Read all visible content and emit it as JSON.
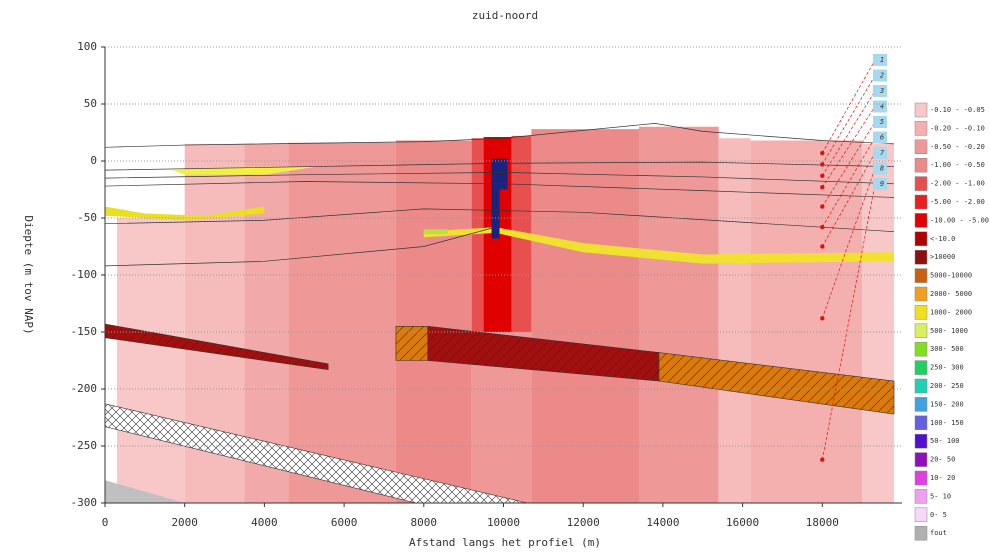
{
  "chart_data": {
    "type": "section",
    "title": "zuid-noord",
    "x_label": "Afstand langs het profiel (m)",
    "y_label": "Diepte (m tov NAP)",
    "xlim": [
      0,
      20000
    ],
    "ylim": [
      -300,
      100
    ],
    "xticks": [
      0,
      2000,
      4000,
      6000,
      8000,
      10000,
      12000,
      14000,
      16000,
      18000
    ],
    "yticks": [
      100,
      50,
      0,
      -50,
      -100,
      -150,
      -200,
      -250,
      -300
    ],
    "grid": true,
    "areas": [
      {
        "x": [
          300,
          2000,
          2000,
          300
        ],
        "y": [
          -50,
          -50,
          -300,
          -300
        ],
        "color": "#f8c8c8"
      },
      {
        "x": [
          2000,
          3500,
          3500,
          2000
        ],
        "y": [
          15,
          15,
          -300,
          -300
        ],
        "color": "#f6bcbc"
      },
      {
        "x": [
          3500,
          4600,
          4600,
          3500
        ],
        "y": [
          15,
          15,
          -300,
          -300
        ],
        "color": "#f2a9a9"
      },
      {
        "x": [
          4600,
          7300,
          7300,
          4600
        ],
        "y": [
          16,
          16,
          -300,
          -300
        ],
        "color": "#ef9898"
      },
      {
        "x": [
          7300,
          9200,
          9200,
          7300
        ],
        "y": [
          18,
          18,
          -300,
          -300
        ],
        "color": "#ec8a8a"
      },
      {
        "x": [
          9200,
          9500,
          9500,
          9200
        ],
        "y": [
          20,
          20,
          -150,
          -150
        ],
        "color": "#e85050"
      },
      {
        "x": [
          9500,
          10200,
          10200,
          9500
        ],
        "y": [
          21,
          21,
          -150,
          -150
        ],
        "color": "#e00000"
      },
      {
        "x": [
          10200,
          10700,
          10700,
          10200
        ],
        "y": [
          22,
          22,
          -150,
          -150
        ],
        "color": "#e85050"
      },
      {
        "x": [
          9200,
          10700,
          10700,
          9200
        ],
        "y": [
          -150,
          -150,
          -300,
          -300
        ],
        "color": "#ef9898"
      },
      {
        "x": [
          10700,
          13400,
          13400,
          10700
        ],
        "y": [
          28,
          28,
          -300,
          -300
        ],
        "color": "#ec8a8a"
      },
      {
        "x": [
          13400,
          15400,
          15400,
          13400
        ],
        "y": [
          30,
          30,
          -300,
          -300
        ],
        "color": "#ef9898"
      },
      {
        "x": [
          15400,
          16200,
          16200,
          15400
        ],
        "y": [
          20,
          20,
          -300,
          -300
        ],
        "color": "#f6bcbc"
      },
      {
        "x": [
          16200,
          19000,
          19000,
          16200
        ],
        "y": [
          18,
          18,
          -300,
          -300
        ],
        "color": "#f4afaf"
      },
      {
        "x": [
          19000,
          19800,
          19800,
          19000
        ],
        "y": [
          15,
          15,
          -300,
          -300
        ],
        "color": "#f8c8c8"
      },
      {
        "x": [
          0,
          5600,
          5600,
          0
        ],
        "y": [
          -143,
          -178,
          -183,
          -155
        ],
        "color": "#a01010",
        "hatch": "diag"
      },
      {
        "x": [
          7300,
          8100,
          8100,
          7300
        ],
        "y": [
          -145,
          -145,
          -175,
          -175
        ],
        "color": "#d97a10",
        "hatch": "diag"
      },
      {
        "x": [
          8100,
          13900,
          13900,
          8100
        ],
        "y": [
          -145,
          -168,
          -193,
          -175
        ],
        "color": "#a01010",
        "hatch": "diag"
      },
      {
        "x": [
          13900,
          19800,
          19800,
          13900
        ],
        "y": [
          -168,
          -193,
          -222,
          -193
        ],
        "color": "#d97a10",
        "hatch": "diag"
      },
      {
        "x": [
          0,
          10600,
          7800,
          0
        ],
        "y": [
          -213,
          -300,
          -300,
          -233
        ],
        "color": "#ffffff",
        "hatch": "cross"
      },
      {
        "x": [
          0,
          2000,
          0
        ],
        "y": [
          -280,
          -300,
          -300
        ],
        "color": "#c0c0c0"
      },
      {
        "x": [
          8000,
          9800,
          12000,
          15000,
          19800,
          19800,
          15000,
          12000,
          9800,
          8000
        ],
        "y": [
          -62,
          -58,
          -72,
          -82,
          -80,
          -88,
          -90,
          -80,
          -63,
          -67
        ],
        "color": "#f0e030"
      },
      {
        "x": [
          8000,
          8600,
          8600,
          8000
        ],
        "y": [
          -60,
          -60,
          -64,
          -64
        ],
        "color": "#b8e040"
      },
      {
        "x": [
          0,
          1000,
          2500,
          4000,
          4000,
          2000,
          0
        ],
        "y": [
          -40,
          -46,
          -48,
          -40,
          -46,
          -52,
          -48
        ],
        "color": "#e8e020"
      },
      {
        "x": [
          1700,
          3500,
          5300,
          4000,
          2000
        ],
        "y": [
          -8,
          -5,
          -5,
          -12,
          -12
        ],
        "color": "#f0f040"
      },
      {
        "x": [
          9700,
          10100,
          10100,
          9900,
          9900,
          9700
        ],
        "y": [
          2,
          2,
          -25,
          -25,
          -68,
          -68
        ],
        "color": "#1a237e"
      }
    ],
    "lines": [
      {
        "x": [
          0,
          2000,
          4000,
          8000,
          10000,
          13800,
          15000,
          18000,
          19800
        ],
        "y": [
          12,
          14,
          15,
          17,
          20,
          33,
          26,
          18,
          15
        ]
      },
      {
        "x": [
          0,
          5000,
          10000,
          15000,
          19800
        ],
        "y": [
          -8,
          -5,
          -2,
          -1,
          -5
        ]
      },
      {
        "x": [
          0,
          5000,
          10000,
          15000,
          19800
        ],
        "y": [
          -15,
          -12,
          -10,
          -14,
          -20
        ]
      },
      {
        "x": [
          0,
          5000,
          10000,
          15000,
          19800
        ],
        "y": [
          -22,
          -18,
          -20,
          -26,
          -32
        ]
      },
      {
        "x": [
          0,
          4000,
          8000,
          12000,
          19800
        ],
        "y": [
          -55,
          -52,
          -42,
          -45,
          -62
        ]
      },
      {
        "x": [
          0,
          4000,
          8000,
          9800
        ],
        "y": [
          -92,
          -88,
          -75,
          -58
        ]
      }
    ],
    "marker_x": 18000,
    "markers": [
      {
        "label": "1",
        "y": 7
      },
      {
        "label": "2",
        "y": -3
      },
      {
        "label": "3",
        "y": -13
      },
      {
        "label": "4",
        "y": -23
      },
      {
        "label": "5",
        "y": -40
      },
      {
        "label": "6",
        "y": -58
      },
      {
        "label": "7",
        "y": -75
      },
      {
        "label": "8",
        "y": -138
      },
      {
        "label": "9",
        "y": -262
      }
    ],
    "marker_color": "#e01010",
    "legend": [
      {
        "label": "-0.10 - -0.05",
        "color": "#f8c8c8"
      },
      {
        "label": "-0.20 - -0.10",
        "color": "#f4afaf"
      },
      {
        "label": "-0.50 - -0.20",
        "color": "#ef9898"
      },
      {
        "label": "-1.00 - -0.50",
        "color": "#ec8a8a"
      },
      {
        "label": "-2.00 - -1.00",
        "color": "#e85050"
      },
      {
        "label": "-5.00 - -2.00",
        "color": "#e82020"
      },
      {
        "label": "-10.00 - -5.00",
        "color": "#e00000"
      },
      {
        "label": "<-10.0",
        "color": "#b00000"
      },
      {
        "label": ">10000",
        "color": "#8b1010"
      },
      {
        "label": "5000-10000",
        "color": "#c86010"
      },
      {
        "label": "2000- 5000",
        "color": "#f0a020"
      },
      {
        "label": "1000- 2000",
        "color": "#f0e020"
      },
      {
        "label": "500- 1000",
        "color": "#d8f060"
      },
      {
        "label": "300- 500",
        "color": "#80e020"
      },
      {
        "label": "250- 300",
        "color": "#20d060"
      },
      {
        "label": "200- 250",
        "color": "#20d0b0"
      },
      {
        "label": "150- 200",
        "color": "#40a0e0"
      },
      {
        "label": "100- 150",
        "color": "#6060e0"
      },
      {
        "label": "50- 100",
        "color": "#5010d0"
      },
      {
        "label": "20- 50",
        "color": "#9010c0"
      },
      {
        "label": "10- 20",
        "color": "#e040e0"
      },
      {
        "label": "5- 10",
        "color": "#f0a0f0"
      },
      {
        "label": "0- 5",
        "color": "#f8d8f8"
      },
      {
        "label": "fout",
        "color": "#b0b0b0"
      }
    ]
  }
}
